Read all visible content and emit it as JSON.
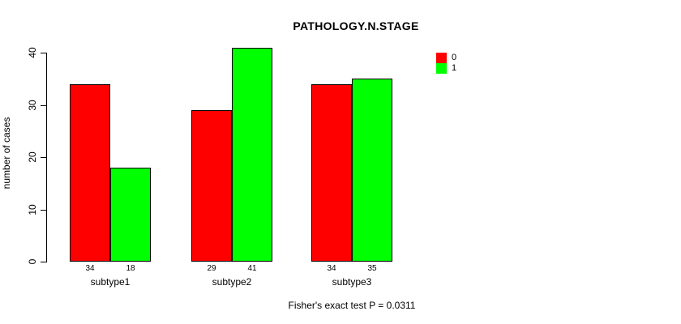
{
  "chart_data": {
    "type": "bar",
    "title": "PATHOLOGY.N.STAGE",
    "ylabel": "number of cases",
    "xlabel": "",
    "categories": [
      "subtype1",
      "subtype2",
      "subtype3"
    ],
    "series": [
      {
        "name": "0",
        "color": "#ff0000",
        "values": [
          34,
          29,
          34
        ]
      },
      {
        "name": "1",
        "color": "#00ff00",
        "values": [
          18,
          41,
          35
        ]
      }
    ],
    "bar_value_labels": [
      [
        "34",
        "18"
      ],
      [
        "29",
        "41"
      ],
      [
        "34",
        "35"
      ]
    ],
    "yticks": [
      0,
      10,
      20,
      30,
      40
    ],
    "ylim": [
      0,
      41
    ],
    "grid": false,
    "legend_position": "top-right",
    "annotation": "Fisher's exact test P = 0.0311"
  }
}
